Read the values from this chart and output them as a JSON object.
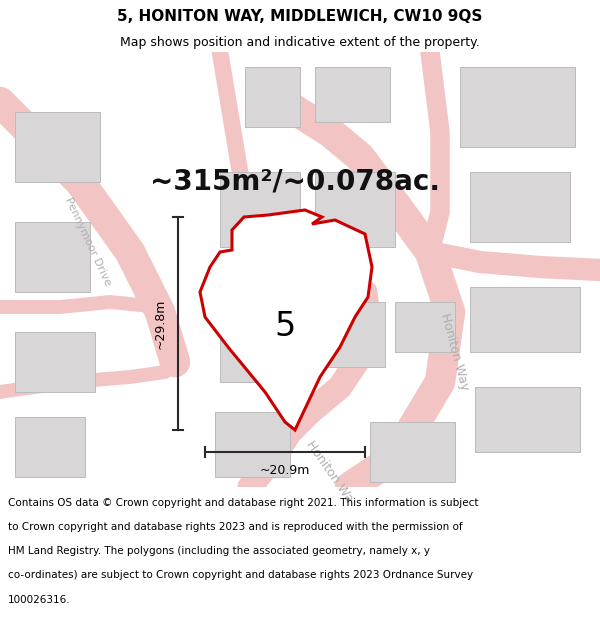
{
  "title": "5, HONITON WAY, MIDDLEWICH, CW10 9QS",
  "subtitle": "Map shows position and indicative extent of the property.",
  "area_text": "~315m²/~0.078ac.",
  "width_label": "~20.9m",
  "height_label": "~29.8m",
  "plot_number": "5",
  "copyright_text": "Contains OS data © Crown copyright and database right 2021. This information is subject to Crown copyright and database rights 2023 and is reproduced with the permission of HM Land Registry. The polygons (including the associated geometry, namely x, y co-ordinates) are subject to Crown copyright and database rights 2023 Ordnance Survey 100026316.",
  "bg_color": "#ffffff",
  "map_bg": "#f7f5f5",
  "road_color": "#f2c4c4",
  "road_edge_color": "#e8a8a8",
  "building_color": "#d8d6d6",
  "building_edge": "#bbbbbb",
  "plot_outline_color": "#cc0000",
  "plot_fill_color": "#ffffff",
  "dim_line_color": "#2a2a2a",
  "area_text_color": "#111111",
  "title_fontsize": 11,
  "subtitle_fontsize": 9,
  "area_fontsize": 20,
  "label_fontsize": 9,
  "plot_num_fontsize": 24,
  "copyright_fontsize": 7.5,
  "road_label_color": "#b0b0b0",
  "road_label_size": 8
}
